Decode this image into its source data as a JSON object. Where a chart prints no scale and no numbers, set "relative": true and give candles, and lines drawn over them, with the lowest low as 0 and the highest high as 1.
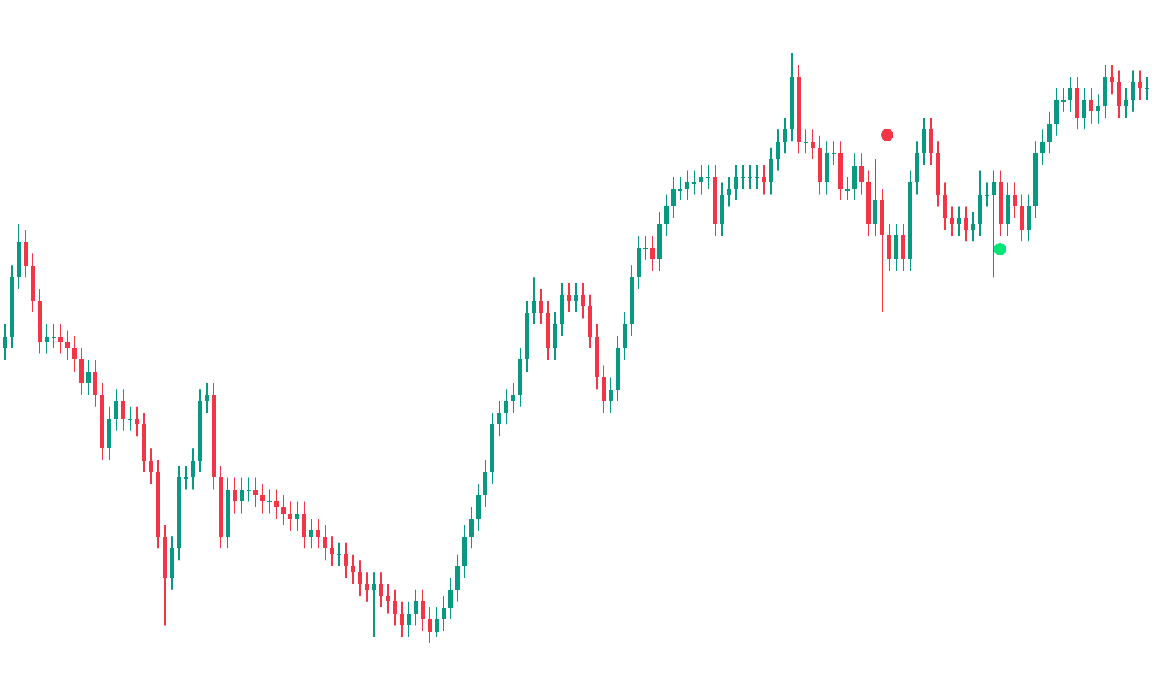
{
  "chart_data": {
    "type": "candlestick",
    "relative": true,
    "colors": [
      "#089981",
      "#089981",
      "#089981",
      "#f23645",
      "#f23645",
      "#f23645",
      "#089981",
      "#089981",
      "#f23645",
      "#f23645",
      "#f23645",
      "#f23645",
      "#089981",
      "#f23645",
      "#f23645",
      "#089981",
      "#089981",
      "#f23645",
      "#089981",
      "#f23645",
      "#f23645",
      "#f23645",
      "#f23645",
      "#f23645",
      "#089981",
      "#089981",
      "#089981",
      "#089981",
      "#089981",
      "#089981",
      "#f23645",
      "#f23645",
      "#089981",
      "#f23645",
      "#089981",
      "#089981",
      "#f23645",
      "#f23645",
      "#089981",
      "#f23645",
      "#f23645",
      "#f23645",
      "#089981",
      "#f23645",
      "#089981",
      "#f23645",
      "#f23645",
      "#f23645",
      "#089981",
      "#f23645",
      "#f23645",
      "#f23645",
      "#f23645",
      "#089981",
      "#f23645",
      "#f23645",
      "#f23645",
      "#f23645",
      "#089981",
      "#089981",
      "#f23645",
      "#f23645",
      "#089981",
      "#089981",
      "#089981",
      "#089981",
      "#089981",
      "#089981",
      "#089981",
      "#089981",
      "#089981",
      "#089981",
      "#089981",
      "#089981",
      "#089981",
      "#089981",
      "#089981",
      "#f23645",
      "#f23645",
      "#089981",
      "#089981",
      "#f23645",
      "#089981",
      "#f23645",
      "#f23645",
      "#f23645",
      "#f23645",
      "#089981",
      "#089981",
      "#089981",
      "#089981",
      "#089981",
      "#089981",
      "#f23645",
      "#089981",
      "#089981",
      "#089981",
      "#089981",
      "#089981",
      "#089981",
      "#089981",
      "#089981",
      "#f23645",
      "#089981",
      "#089981",
      "#089981",
      "#089981",
      "#089981",
      "#089981",
      "#f23645",
      "#089981",
      "#089981",
      "#089981",
      "#089981",
      "#f23645",
      "#089981",
      "#f23645",
      "#f23645",
      "#089981",
      "#089981",
      "#f23645",
      "#089981",
      "#089981",
      "#f23645",
      "#f23645",
      "#089981",
      "#f23645",
      "#f23645",
      "#089981",
      "#f23645",
      "#089981",
      "#089981",
      "#089981",
      "#f23645",
      "#f23645",
      "#f23645",
      "#f23645",
      "#089981",
      "#f23645",
      "#089981",
      "#089981",
      "#089981",
      "#089981",
      "#f23645",
      "#089981",
      "#f23645",
      "#f23645",
      "#089981",
      "#089981",
      "#089981",
      "#089981",
      "#089981",
      "#089981",
      "#089981",
      "#f23645",
      "#089981",
      "#f23645",
      "#089981",
      "#089981",
      "#f23645",
      "#f23645",
      "#089981",
      "#089981",
      "#f23645",
      "#089981"
    ],
    "categories": [
      null,
      null,
      null,
      null,
      null,
      null,
      null,
      null,
      null,
      null,
      null,
      null,
      null,
      null,
      null,
      null,
      null,
      null,
      null,
      null,
      null,
      null,
      null,
      null,
      null,
      null,
      null,
      null,
      null,
      null,
      null,
      null,
      null,
      null,
      null,
      null,
      null,
      null,
      null,
      null,
      null,
      null,
      null,
      null,
      null,
      null,
      null,
      null,
      null,
      null,
      null,
      null,
      null,
      null,
      null,
      null,
      null,
      null,
      null,
      null,
      null,
      null,
      null,
      null,
      null,
      null,
      null,
      null,
      null,
      null,
      null,
      null,
      null,
      null,
      null,
      null,
      null,
      null,
      null,
      null,
      null,
      null,
      null,
      null,
      null,
      null,
      null,
      null,
      null,
      null,
      null,
      null,
      null,
      null,
      null,
      null,
      null,
      null,
      null,
      null,
      null,
      null,
      null,
      null,
      null,
      null,
      null,
      null,
      null,
      null,
      null,
      null,
      null,
      null,
      null,
      null,
      null,
      null,
      null,
      null,
      null,
      null,
      null,
      null,
      null,
      null,
      null,
      null,
      null,
      null,
      null,
      null,
      null,
      null,
      null,
      null,
      null,
      null,
      null,
      null,
      null,
      null,
      null,
      null,
      null,
      null,
      null,
      null,
      null,
      null,
      null,
      null,
      null,
      null,
      null,
      null,
      null,
      null,
      null,
      null,
      null,
      null,
      null,
      null,
      null
    ],
    "ohlc": [
      [
        0.5,
        0.54,
        0.48,
        0.52
      ],
      [
        0.52,
        0.64,
        0.5,
        0.62
      ],
      [
        0.62,
        0.71,
        0.6,
        0.68
      ],
      [
        0.68,
        0.7,
        0.62,
        0.64
      ],
      [
        0.64,
        0.66,
        0.56,
        0.58
      ],
      [
        0.58,
        0.6,
        0.49,
        0.51
      ],
      [
        0.51,
        0.54,
        0.49,
        0.52
      ],
      [
        0.52,
        0.54,
        0.5,
        0.52
      ],
      [
        0.52,
        0.54,
        0.49,
        0.51
      ],
      [
        0.51,
        0.53,
        0.48,
        0.5
      ],
      [
        0.5,
        0.52,
        0.46,
        0.48
      ],
      [
        0.48,
        0.5,
        0.42,
        0.44
      ],
      [
        0.44,
        0.48,
        0.42,
        0.46
      ],
      [
        0.46,
        0.48,
        0.4,
        0.42
      ],
      [
        0.42,
        0.44,
        0.31,
        0.33
      ],
      [
        0.33,
        0.4,
        0.31,
        0.38
      ],
      [
        0.38,
        0.43,
        0.36,
        0.41
      ],
      [
        0.41,
        0.43,
        0.36,
        0.38
      ],
      [
        0.38,
        0.4,
        0.36,
        0.38
      ],
      [
        0.38,
        0.4,
        0.35,
        0.37
      ],
      [
        0.37,
        0.39,
        0.29,
        0.31
      ],
      [
        0.31,
        0.33,
        0.27,
        0.29
      ],
      [
        0.29,
        0.31,
        0.16,
        0.18
      ],
      [
        0.18,
        0.2,
        0.03,
        0.11
      ],
      [
        0.11,
        0.18,
        0.09,
        0.16
      ],
      [
        0.16,
        0.3,
        0.14,
        0.28
      ],
      [
        0.28,
        0.3,
        0.26,
        0.28
      ],
      [
        0.28,
        0.33,
        0.26,
        0.31
      ],
      [
        0.31,
        0.43,
        0.29,
        0.41
      ],
      [
        0.41,
        0.44,
        0.39,
        0.42
      ],
      [
        0.42,
        0.44,
        0.26,
        0.28
      ],
      [
        0.28,
        0.3,
        0.16,
        0.18
      ],
      [
        0.18,
        0.28,
        0.16,
        0.26
      ],
      [
        0.26,
        0.28,
        0.22,
        0.24
      ],
      [
        0.24,
        0.28,
        0.22,
        0.26
      ],
      [
        0.26,
        0.28,
        0.24,
        0.26
      ],
      [
        0.26,
        0.28,
        0.23,
        0.25
      ],
      [
        0.25,
        0.27,
        0.22,
        0.24
      ],
      [
        0.24,
        0.26,
        0.22,
        0.24
      ],
      [
        0.24,
        0.26,
        0.21,
        0.23
      ],
      [
        0.23,
        0.25,
        0.2,
        0.22
      ],
      [
        0.22,
        0.24,
        0.19,
        0.21
      ],
      [
        0.21,
        0.24,
        0.19,
        0.22
      ],
      [
        0.22,
        0.24,
        0.16,
        0.18
      ],
      [
        0.18,
        0.21,
        0.16,
        0.19
      ],
      [
        0.19,
        0.21,
        0.16,
        0.18
      ],
      [
        0.18,
        0.2,
        0.14,
        0.16
      ],
      [
        0.16,
        0.18,
        0.13,
        0.15
      ],
      [
        0.15,
        0.17,
        0.13,
        0.15
      ],
      [
        0.15,
        0.17,
        0.11,
        0.13
      ],
      [
        0.13,
        0.15,
        0.1,
        0.12
      ],
      [
        0.12,
        0.14,
        0.08,
        0.1
      ],
      [
        0.1,
        0.12,
        0.07,
        0.09
      ],
      [
        0.09,
        0.12,
        0.01,
        0.1
      ],
      [
        0.1,
        0.12,
        0.06,
        0.08
      ],
      [
        0.08,
        0.1,
        0.05,
        0.07
      ],
      [
        0.07,
        0.09,
        0.03,
        0.05
      ],
      [
        0.05,
        0.07,
        0.01,
        0.03
      ],
      [
        0.03,
        0.07,
        0.01,
        0.05
      ],
      [
        0.05,
        0.09,
        0.03,
        0.07
      ],
      [
        0.07,
        0.09,
        0.02,
        0.04
      ],
      [
        0.04,
        0.06,
        0,
        0.02
      ],
      [
        0.02,
        0.06,
        0.01,
        0.04
      ],
      [
        0.04,
        0.08,
        0.02,
        0.06
      ],
      [
        0.06,
        0.11,
        0.04,
        0.09
      ],
      [
        0.09,
        0.15,
        0.07,
        0.13
      ],
      [
        0.13,
        0.2,
        0.11,
        0.18
      ],
      [
        0.18,
        0.23,
        0.16,
        0.21
      ],
      [
        0.21,
        0.27,
        0.19,
        0.25
      ],
      [
        0.25,
        0.31,
        0.23,
        0.29
      ],
      [
        0.29,
        0.39,
        0.27,
        0.37
      ],
      [
        0.37,
        0.41,
        0.35,
        0.39
      ],
      [
        0.39,
        0.43,
        0.37,
        0.41
      ],
      [
        0.41,
        0.44,
        0.39,
        0.42
      ],
      [
        0.42,
        0.5,
        0.4,
        0.48
      ],
      [
        0.48,
        0.58,
        0.46,
        0.56
      ],
      [
        0.56,
        0.62,
        0.54,
        0.58
      ],
      [
        0.58,
        0.6,
        0.54,
        0.56
      ],
      [
        0.56,
        0.58,
        0.48,
        0.5
      ],
      [
        0.5,
        0.56,
        0.48,
        0.54
      ],
      [
        0.54,
        0.61,
        0.52,
        0.59
      ],
      [
        0.59,
        0.61,
        0.56,
        0.58
      ],
      [
        0.58,
        0.61,
        0.56,
        0.59
      ],
      [
        0.59,
        0.61,
        0.55,
        0.57
      ],
      [
        0.57,
        0.59,
        0.5,
        0.52
      ],
      [
        0.52,
        0.54,
        0.43,
        0.45
      ],
      [
        0.45,
        0.47,
        0.39,
        0.41
      ],
      [
        0.41,
        0.45,
        0.39,
        0.43
      ],
      [
        0.43,
        0.52,
        0.41,
        0.5
      ],
      [
        0.5,
        0.56,
        0.48,
        0.54
      ],
      [
        0.54,
        0.64,
        0.52,
        0.62
      ],
      [
        0.62,
        0.69,
        0.6,
        0.67
      ],
      [
        0.67,
        0.69,
        0.65,
        0.67
      ],
      [
        0.67,
        0.69,
        0.63,
        0.65
      ],
      [
        0.65,
        0.73,
        0.63,
        0.71
      ],
      [
        0.71,
        0.76,
        0.69,
        0.74
      ],
      [
        0.74,
        0.79,
        0.72,
        0.77
      ],
      [
        0.77,
        0.79,
        0.75,
        0.77
      ],
      [
        0.77,
        0.8,
        0.75,
        0.78
      ],
      [
        0.78,
        0.8,
        0.76,
        0.78
      ],
      [
        0.78,
        0.81,
        0.76,
        0.79
      ],
      [
        0.79,
        0.81,
        0.77,
        0.79
      ],
      [
        0.79,
        0.81,
        0.69,
        0.71
      ],
      [
        0.71,
        0.78,
        0.69,
        0.76
      ],
      [
        0.76,
        0.79,
        0.74,
        0.77
      ],
      [
        0.77,
        0.81,
        0.75,
        0.79
      ],
      [
        0.79,
        0.81,
        0.77,
        0.79
      ],
      [
        0.79,
        0.81,
        0.77,
        0.79
      ],
      [
        0.79,
        0.81,
        0.77,
        0.79
      ],
      [
        0.79,
        0.81,
        0.76,
        0.78
      ],
      [
        0.78,
        0.84,
        0.76,
        0.82
      ],
      [
        0.82,
        0.87,
        0.8,
        0.85
      ],
      [
        0.85,
        0.89,
        0.83,
        0.87
      ],
      [
        0.87,
        1,
        0.85,
        0.96
      ],
      [
        0.96,
        0.98,
        0.83,
        0.85
      ],
      [
        0.85,
        0.87,
        0.83,
        0.85
      ],
      [
        0.85,
        0.87,
        0.82,
        0.84
      ],
      [
        0.84,
        0.86,
        0.76,
        0.78
      ],
      [
        0.78,
        0.85,
        0.76,
        0.83
      ],
      [
        0.83,
        0.85,
        0.81,
        0.83
      ],
      [
        0.83,
        0.85,
        0.75,
        0.77
      ],
      [
        0.77,
        0.79,
        0.75,
        0.77
      ],
      [
        0.77,
        0.83,
        0.75,
        0.81
      ],
      [
        0.81,
        0.83,
        0.76,
        0.78
      ],
      [
        0.78,
        0.8,
        0.69,
        0.71
      ],
      [
        0.71,
        0.82,
        0.69,
        0.75
      ],
      [
        0.75,
        0.77,
        0.56,
        0.69
      ],
      [
        0.69,
        0.71,
        0.63,
        0.65
      ],
      [
        0.65,
        0.71,
        0.63,
        0.69
      ],
      [
        0.69,
        0.71,
        0.63,
        0.65
      ],
      [
        0.65,
        0.8,
        0.63,
        0.78
      ],
      [
        0.78,
        0.85,
        0.76,
        0.83
      ],
      [
        0.83,
        0.89,
        0.81,
        0.87
      ],
      [
        0.87,
        0.89,
        0.81,
        0.83
      ],
      [
        0.83,
        0.85,
        0.74,
        0.76
      ],
      [
        0.76,
        0.78,
        0.7,
        0.72
      ],
      [
        0.72,
        0.74,
        0.69,
        0.71
      ],
      [
        0.71,
        0.74,
        0.69,
        0.72
      ],
      [
        0.72,
        0.74,
        0.68,
        0.7
      ],
      [
        0.7,
        0.73,
        0.68,
        0.71
      ],
      [
        0.71,
        0.8,
        0.69,
        0.76
      ],
      [
        0.76,
        0.78,
        0.74,
        0.76
      ],
      [
        0.76,
        0.8,
        0.62,
        0.78
      ],
      [
        0.78,
        0.8,
        0.69,
        0.71
      ],
      [
        0.71,
        0.78,
        0.69,
        0.76
      ],
      [
        0.76,
        0.78,
        0.72,
        0.74
      ],
      [
        0.74,
        0.76,
        0.68,
        0.7
      ],
      [
        0.7,
        0.76,
        0.68,
        0.74
      ],
      [
        0.74,
        0.85,
        0.72,
        0.83
      ],
      [
        0.83,
        0.87,
        0.81,
        0.85
      ],
      [
        0.85,
        0.9,
        0.83,
        0.88
      ],
      [
        0.88,
        0.94,
        0.86,
        0.92
      ],
      [
        0.92,
        0.94,
        0.9,
        0.92
      ],
      [
        0.92,
        0.96,
        0.9,
        0.94
      ],
      [
        0.94,
        0.96,
        0.87,
        0.89
      ],
      [
        0.89,
        0.94,
        0.87,
        0.92
      ],
      [
        0.92,
        0.94,
        0.88,
        0.9
      ],
      [
        0.9,
        0.93,
        0.88,
        0.91
      ],
      [
        0.91,
        0.98,
        0.89,
        0.96
      ],
      [
        0.96,
        0.98,
        0.93,
        0.95
      ],
      [
        0.95,
        0.97,
        0.89,
        0.91
      ],
      [
        0.91,
        0.94,
        0.89,
        0.92
      ],
      [
        0.92,
        0.97,
        0.9,
        0.95
      ],
      [
        0.95,
        0.97,
        0.92,
        0.94
      ],
      [
        0.94,
        0.96,
        0.92,
        0.94
      ]
    ]
  }
}
